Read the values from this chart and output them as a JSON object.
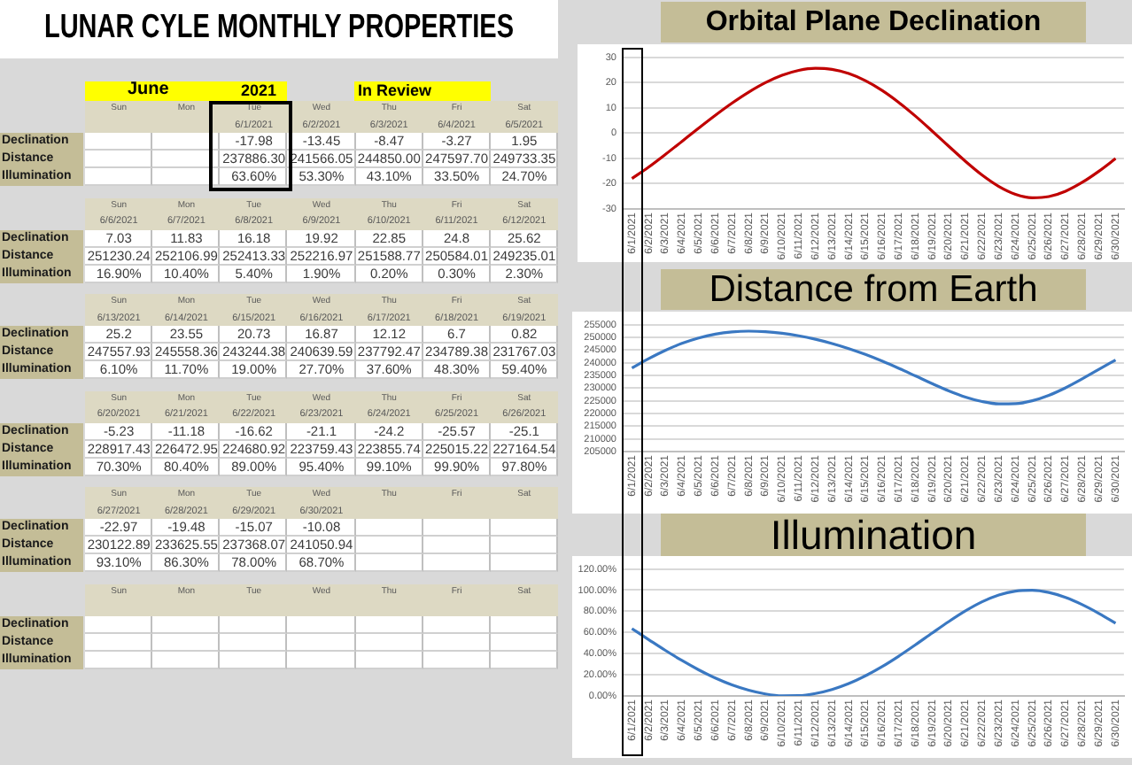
{
  "chart_data": [
    {
      "type": "other",
      "title": "LUNAR CYLE MONTHLY PROPERTIES",
      "subtitle": "June",
      "annotations": [
        "2021",
        "In Review"
      ],
      "categories": [
        "Sun",
        "Mon",
        "Tue",
        "Wed",
        "Thu",
        "Fri",
        "Sat"
      ],
      "y_categories": [
        "Declination",
        "Distance",
        "Illumination"
      ]
    },
    {
      "type": "line",
      "title": "Orbital Plane Declination",
      "categories": [
        "6/1/2021",
        "6/2/2021",
        "6/3/2021",
        "6/4/2021",
        "6/5/2021",
        "6/6/2021",
        "6/7/2021",
        "6/8/2021",
        "6/9/2021",
        "6/10/2021",
        "6/11/2021",
        "6/12/2021",
        "6/13/2021",
        "6/14/2021",
        "6/15/2021",
        "6/16/2021",
        "6/17/2021",
        "6/18/2021",
        "6/19/2021",
        "6/20/2021",
        "6/21/2021",
        "6/22/2021",
        "6/23/2021",
        "6/24/2021",
        "6/25/2021",
        "6/26/2021",
        "6/27/2021",
        "6/28/2021",
        "6/29/2021",
        "6/30/2021"
      ],
      "values": [
        -17.98,
        -13.45,
        -8.47,
        -3.27,
        1.95,
        7.03,
        11.83,
        16.18,
        19.92,
        22.85,
        24.8,
        25.62,
        25.2,
        23.55,
        20.73,
        16.87,
        12.12,
        6.7,
        0.82,
        -5.23,
        -11.18,
        -16.62,
        -21.1,
        -24.2,
        -25.57,
        -25.1,
        -22.97,
        -19.48,
        -15.07,
        -10.08
      ],
      "value_labels": [
        "-17.98",
        "-13.45",
        "-8.47",
        "-3.27",
        "1.95",
        "7.03",
        "11.83",
        "16.18",
        "19.92",
        "22.85",
        "24.8",
        "25.62",
        "25.2",
        "23.55",
        "20.73",
        "16.87",
        "12.12",
        "6.7",
        "0.82",
        "-5.23",
        "-11.18",
        "-16.62",
        "-21.1",
        "-24.2",
        "-25.57",
        "-25.1",
        "-22.97",
        "-19.48",
        "-15.07",
        "-10.08"
      ],
      "color": "#c00000",
      "ylim": [
        -30,
        30
      ],
      "yticks": [
        -30,
        -20,
        -10,
        0,
        10,
        20,
        30
      ],
      "grid": "y",
      "marker": "none"
    },
    {
      "type": "line",
      "title": "Distance from Earth",
      "categories": [
        "6/1/2021",
        "6/2/2021",
        "6/3/2021",
        "6/4/2021",
        "6/5/2021",
        "6/6/2021",
        "6/7/2021",
        "6/8/2021",
        "6/9/2021",
        "6/10/2021",
        "6/11/2021",
        "6/12/2021",
        "6/13/2021",
        "6/14/2021",
        "6/15/2021",
        "6/16/2021",
        "6/17/2021",
        "6/18/2021",
        "6/19/2021",
        "6/20/2021",
        "6/21/2021",
        "6/22/2021",
        "6/23/2021",
        "6/24/2021",
        "6/25/2021",
        "6/26/2021",
        "6/27/2021",
        "6/28/2021",
        "6/29/2021",
        "6/30/2021"
      ],
      "values": [
        237886.3,
        241566.05,
        244850,
        247597.7,
        249733.35,
        251230.24,
        252106.99,
        252413.33,
        252216.97,
        251588.77,
        250584.01,
        249235.01,
        247557.93,
        245558.36,
        243244.38,
        240639.59,
        237792.47,
        234789.38,
        231767.03,
        228917.43,
        226472.95,
        224680.92,
        223759.43,
        223855.74,
        225015.22,
        227164.54,
        230122.89,
        233625.55,
        237368.07,
        241050.94
      ],
      "value_labels": [
        "237886.30",
        "241566.05",
        "244850.00",
        "247597.70",
        "249733.35",
        "251230.24",
        "252106.99",
        "252413.33",
        "252216.97",
        "251588.77",
        "250584.01",
        "249235.01",
        "247557.93",
        "245558.36",
        "243244.38",
        "240639.59",
        "237792.47",
        "234789.38",
        "231767.03",
        "228917.43",
        "226472.95",
        "224680.92",
        "223759.43",
        "223855.74",
        "225015.22",
        "227164.54",
        "230122.89",
        "233625.55",
        "237368.07",
        "241050.94"
      ],
      "color": "#3a78c2",
      "ylim": [
        205000,
        255000
      ],
      "yticks": [
        205000,
        210000,
        215000,
        220000,
        225000,
        230000,
        235000,
        240000,
        245000,
        250000,
        255000
      ],
      "grid": "y",
      "marker": "none"
    },
    {
      "type": "line",
      "title": "Illumination",
      "categories": [
        "6/1/2021",
        "6/2/2021",
        "6/3/2021",
        "6/4/2021",
        "6/5/2021",
        "6/6/2021",
        "6/7/2021",
        "6/8/2021",
        "6/9/2021",
        "6/10/2021",
        "6/11/2021",
        "6/12/2021",
        "6/13/2021",
        "6/14/2021",
        "6/15/2021",
        "6/16/2021",
        "6/17/2021",
        "6/18/2021",
        "6/19/2021",
        "6/20/2021",
        "6/21/2021",
        "6/22/2021",
        "6/23/2021",
        "6/24/2021",
        "6/25/2021",
        "6/26/2021",
        "6/27/2021",
        "6/28/2021",
        "6/29/2021",
        "6/30/2021"
      ],
      "values": [
        63.6,
        53.3,
        43.1,
        33.5,
        24.7,
        16.9,
        10.4,
        5.4,
        1.9,
        0.2,
        0.3,
        2.3,
        6.1,
        11.7,
        19,
        27.7,
        37.6,
        48.3,
        59.4,
        70.3,
        80.4,
        89,
        95.4,
        99.1,
        99.9,
        97.8,
        93.1,
        86.3,
        78,
        68.7
      ],
      "value_labels": [
        "63.60%",
        "53.30%",
        "43.10%",
        "33.50%",
        "24.70%",
        "16.90%",
        "10.40%",
        "5.40%",
        "1.90%",
        "0.20%",
        "0.30%",
        "2.30%",
        "6.10%",
        "11.70%",
        "19.00%",
        "27.70%",
        "37.60%",
        "48.30%",
        "59.40%",
        "70.30%",
        "80.40%",
        "89.00%",
        "95.40%",
        "99.10%",
        "99.90%",
        "97.80%",
        "93.10%",
        "86.30%",
        "78.00%",
        "68.70%"
      ],
      "color": "#3a78c2",
      "ylim": [
        0,
        120
      ],
      "yticks": [
        {
          "value": 0,
          "label": "0.00%"
        },
        {
          "value": 20,
          "label": "20.00%"
        },
        {
          "value": 40,
          "label": "40.00%"
        },
        {
          "value": 60,
          "label": "60.00%"
        },
        {
          "value": 80,
          "label": "80.00%"
        },
        {
          "value": 100,
          "label": "100.00%"
        },
        {
          "value": 120,
          "label": "120.00%"
        }
      ],
      "grid": "y",
      "marker": "none"
    }
  ]
}
